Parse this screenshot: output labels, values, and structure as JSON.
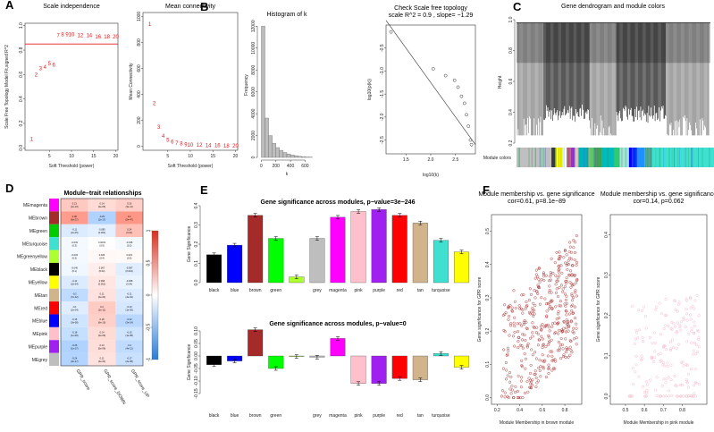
{
  "panel_letters": [
    "A",
    "B",
    "C",
    "D",
    "E",
    "F"
  ],
  "chart_data": [
    {
      "id": "A1",
      "type": "scatter",
      "title": "Scale independence",
      "xlabel": "Soft Threshold (power)",
      "ylabel": "Scale Free Topology Model Fit,signed R^2",
      "xlim": [
        0,
        20
      ],
      "ylim": [
        0,
        1.0
      ],
      "xticks": [
        5,
        10,
        15,
        20
      ],
      "yticks": [
        "0.0",
        "0.2",
        "0.4",
        "0.6",
        "0.8",
        "1.0"
      ],
      "hline": 0.85,
      "hline_color": "#e41a1c",
      "x": [
        1,
        2,
        3,
        4,
        5,
        6,
        7,
        8,
        9,
        10,
        12,
        14,
        16,
        18,
        20
      ],
      "y": [
        0.07,
        0.6,
        0.65,
        0.66,
        0.69,
        0.68,
        0.92,
        0.93,
        0.93,
        0.93,
        0.92,
        0.92,
        0.91,
        0.91,
        0.91
      ],
      "labels": [
        "1",
        "2",
        "3",
        "4",
        "5",
        "6",
        "7",
        "8",
        "9",
        "10",
        "12",
        "14",
        "16",
        "18",
        "20"
      ]
    },
    {
      "id": "A2",
      "type": "scatter",
      "title": "Mean connectivity",
      "xlabel": "Soft Threshold (power)",
      "ylabel": "Mean Connectivity",
      "xlim": [
        0,
        20
      ],
      "ylim": [
        0,
        1000
      ],
      "xticks": [
        5,
        10,
        15,
        20
      ],
      "yticks": [
        "0",
        "200",
        "400",
        "600",
        "800",
        "1000"
      ],
      "x": [
        1,
        2,
        3,
        4,
        5,
        6,
        7,
        8,
        9,
        10,
        12,
        14,
        16,
        18,
        20
      ],
      "y": [
        940,
        330,
        150,
        80,
        50,
        35,
        25,
        20,
        15,
        12,
        10,
        8,
        7,
        6,
        5
      ],
      "labels": [
        "1",
        "2",
        "3",
        "4",
        "5",
        "6",
        "7",
        "8",
        "9",
        "10",
        "12",
        "14",
        "16",
        "18",
        "20"
      ]
    },
    {
      "id": "B1",
      "type": "bar",
      "title": "Histogram of k",
      "xlabel": "k",
      "ylabel": "Frequency",
      "xlim": [
        0,
        700
      ],
      "ylim": [
        0,
        12000
      ],
      "xticks": [
        0,
        200,
        400,
        600
      ],
      "yticks": [
        "0",
        "2000",
        "4000",
        "6000",
        "8000",
        "10000",
        "12000"
      ],
      "bin_width": 50,
      "values": [
        12000,
        3600,
        2000,
        1300,
        900,
        650,
        450,
        320,
        220,
        160,
        110,
        70,
        40,
        20
      ]
    },
    {
      "id": "B2",
      "type": "scatter",
      "title": "Check Scale free topology",
      "subtitle": "scale R^2 = 0.9 , slope= −1.29",
      "xlabel": "log10(k)",
      "ylabel": "log10(p(k))",
      "xlim": [
        1.1,
        2.9
      ],
      "ylim": [
        -2.8,
        0
      ],
      "xticks": [
        "1.5",
        "2.0",
        "2.5"
      ],
      "yticks": [
        "-0.5",
        "-1.0",
        "-1.5",
        "-2.0",
        "-2.5"
      ],
      "x": [
        1.2,
        2.05,
        2.3,
        2.48,
        2.55,
        2.62,
        2.68,
        2.72,
        2.76,
        2.8,
        2.82
      ],
      "y": [
        -0.15,
        -0.95,
        -1.1,
        -1.2,
        -1.35,
        -1.55,
        -1.7,
        -1.95,
        -2.2,
        -2.5,
        -2.6
      ],
      "fit": [
        [
          1.1,
          0.1
        ],
        [
          2.9,
          -2.6
        ]
      ]
    },
    {
      "id": "C",
      "type": "dendrogram",
      "title": "Gene dendrogram and module colors",
      "ylabel": "Height",
      "ylim": [
        0.2,
        1.0
      ],
      "yticks": [
        "0.2",
        "0.4",
        "0.6",
        "0.8",
        "1.0"
      ],
      "colorbar_label": "Module colors",
      "module_colors": [
        [
          "#bfbfbf",
          0.18
        ],
        [
          "#3a3a3a",
          0.02
        ],
        [
          "#ffff00",
          0.04
        ],
        [
          "#ffffff",
          0.02
        ],
        [
          "#ff4040",
          0.02
        ],
        [
          "#9b2cd8",
          0.02
        ],
        [
          "#ffc0cb",
          0.02
        ],
        [
          "#00b3b3",
          0.05
        ],
        [
          "#66cc66",
          0.03
        ],
        [
          "#44aa44",
          0.04
        ],
        [
          "#00bbbb",
          0.06
        ],
        [
          "#2ecc71",
          0.03
        ],
        [
          "#a3e4d7",
          0.05
        ],
        [
          "#0000ff",
          0.04
        ],
        [
          "#1e90ff",
          0.04
        ],
        [
          "#5f9ea0",
          0.04
        ],
        [
          "#40e0d0",
          0.32
        ]
      ]
    },
    {
      "id": "D",
      "type": "heatmap",
      "title": "Module–trait relationships",
      "rows": [
        "MEmagenta",
        "MEbrown",
        "MEgreen",
        "MEturquoise",
        "MEgreenyellow",
        "MEblack",
        "MEyellow",
        "MEtan",
        "MEred",
        "MEblue",
        "MEpink",
        "MEpurple",
        "MEgrey"
      ],
      "row_colors": [
        "#ff00ff",
        "#a52a2a",
        "#00cc00",
        "#40e0d0",
        "#adff2f",
        "#000000",
        "#ffff00",
        "#d2b48c",
        "#ff0000",
        "#0000ff",
        "#ffc0cb",
        "#a020f0",
        "#bebebe"
      ],
      "columns": [
        "GPR_score",
        "GPR_score_DOWN",
        "GPR_score_UP"
      ],
      "values": [
        [
          0.21,
          0.14,
          0.19
        ],
        [
          0.38,
          -0.25,
          0.4
        ],
        [
          -0.11,
          -0.085,
          0.24
        ],
        [
          -0.033,
          0.0033,
          -0.035
        ],
        [
          -0.033,
          0.026,
          0.023
        ],
        [
          -0.046,
          0.067,
          -0.097
        ],
        [
          -0.11,
          0.096,
          -0.068
        ],
        [
          -0.2,
          0.11,
          -0.11
        ],
        [
          -0.1,
          0.2,
          -0.13
        ],
        [
          -0.15,
          0.18,
          -0.22
        ],
        [
          -0.18,
          0.14,
          -0.15
        ],
        [
          -0.25,
          0.13,
          -0.2
        ],
        [
          -0.24,
          0.11,
          -0.17
        ]
      ],
      "pvalues": [
        [
          "(2e-13)",
          "(2e-05)",
          "(3e-11)"
        ],
        [
          "(6e-27)",
          "(1e-17)",
          "(5e-47)"
        ],
        [
          "(2e-05)",
          "(0.004)",
          "(0.01)"
        ],
        [
          "(0.3)",
          "(0.9)",
          "(0.3)"
        ],
        [
          "(0.3)",
          "(0.4)",
          "(0.5)"
        ],
        [
          "(0.1)",
          "(0.02)",
          "(0.001)"
        ],
        [
          "(2e-04)",
          "(0.001)",
          "(0.04)"
        ],
        [
          "(7e-12)",
          "(2e-04)",
          "(4e-04)"
        ],
        [
          "(2e-04)",
          "(2e-11)",
          "(1e-05)"
        ],
        [
          "(3e-08)",
          "(6e-10)",
          "(3e-14)"
        ],
        [
          "(1e-09)",
          "(2e-06)",
          "(1e-08)"
        ],
        [
          "(1e-17)",
          "(5e-06)",
          "(4e-12)"
        ],
        [
          "(3e-17)",
          "(3e-04)",
          "(2e-08)"
        ]
      ],
      "scale_ticks": [
        "1",
        "0.5",
        "0",
        "-0.5",
        "-1"
      ]
    },
    {
      "id": "E1",
      "type": "bar",
      "title": "Gene significance across modules, p−value=3e−246",
      "ylabel": "Gene Significance",
      "ylim": [
        0,
        0.4
      ],
      "yticks": [
        "0.0",
        "0.1",
        "0.2",
        "0.3",
        "0.4"
      ],
      "categories": [
        "black",
        "blue",
        "brown",
        "green",
        "",
        "grey",
        "magenta",
        "pink",
        "purple",
        "red",
        "tan",
        "turquoise",
        ""
      ],
      "colors": [
        "#000000",
        "#0000ff",
        "#a52a2a",
        "#00ff00",
        "#adff2f",
        "#bebebe",
        "#ff00ff",
        "#ffc0cb",
        "#a020f0",
        "#ff0000",
        "#d2b48c",
        "#40e0d0",
        "#ffff00"
      ],
      "values": [
        0.145,
        0.195,
        0.35,
        0.23,
        0.03,
        0.23,
        0.34,
        0.37,
        0.38,
        0.35,
        0.31,
        0.22,
        0.16
      ]
    },
    {
      "id": "E2",
      "type": "bar",
      "title": "Gene significance across modules, p−value=0",
      "ylabel": "Gene Significance",
      "ylim": [
        -0.15,
        0.1
      ],
      "yticks": [
        "-0.15",
        "-0.10",
        "-0.05",
        "0.00",
        "0.05",
        "0.10"
      ],
      "categories": [
        "black",
        "blue",
        "brown",
        "green",
        "",
        "grey",
        "magenta",
        "pink",
        "purple",
        "red",
        "tan",
        "turquoise",
        ""
      ],
      "colors": [
        "#000000",
        "#0000ff",
        "#a52a2a",
        "#00ff00",
        "#adff2f",
        "#bebebe",
        "#ff00ff",
        "#ffc0cb",
        "#a020f0",
        "#ff0000",
        "#d2b48c",
        "#40e0d0",
        "#ffff00"
      ],
      "values": [
        -0.035,
        -0.02,
        0.105,
        -0.05,
        -0.002,
        -0.005,
        0.07,
        -0.11,
        -0.11,
        -0.09,
        -0.095,
        0.01,
        -0.045
      ]
    },
    {
      "id": "F1",
      "type": "scatter",
      "title": "Module membership vs. gene significance\ncor=0.61, p=8.1e−89",
      "xlabel": "Module Membership in brown module",
      "ylabel": "Gene significance for GPR score",
      "xlim": [
        0.15,
        0.95
      ],
      "ylim": [
        -0.02,
        0.55
      ],
      "xticks": [
        "0.2",
        "0.4",
        "0.6",
        "0.8"
      ],
      "yticks": [
        "0.0",
        "0.1",
        "0.2",
        "0.3",
        "0.4",
        "0.5"
      ],
      "point_color": "#a52a2a",
      "n_points": 420,
      "cor": 0.61
    },
    {
      "id": "F2",
      "type": "scatter",
      "title": "Module membership vs. gene significance\ncor=0.14, p=0.062",
      "xlabel": "Module Membership in pink module",
      "ylabel": "Gene significance for GPR score",
      "xlim": [
        0.42,
        0.93
      ],
      "ylim": [
        -0.02,
        0.45
      ],
      "xticks": [
        "0.5",
        "0.6",
        "0.7",
        "0.8"
      ],
      "yticks": [
        "0.0",
        "0.1",
        "0.2",
        "0.3",
        "0.4"
      ],
      "point_color": "#f5b6c4",
      "n_points": 190,
      "cor": 0.14
    }
  ]
}
